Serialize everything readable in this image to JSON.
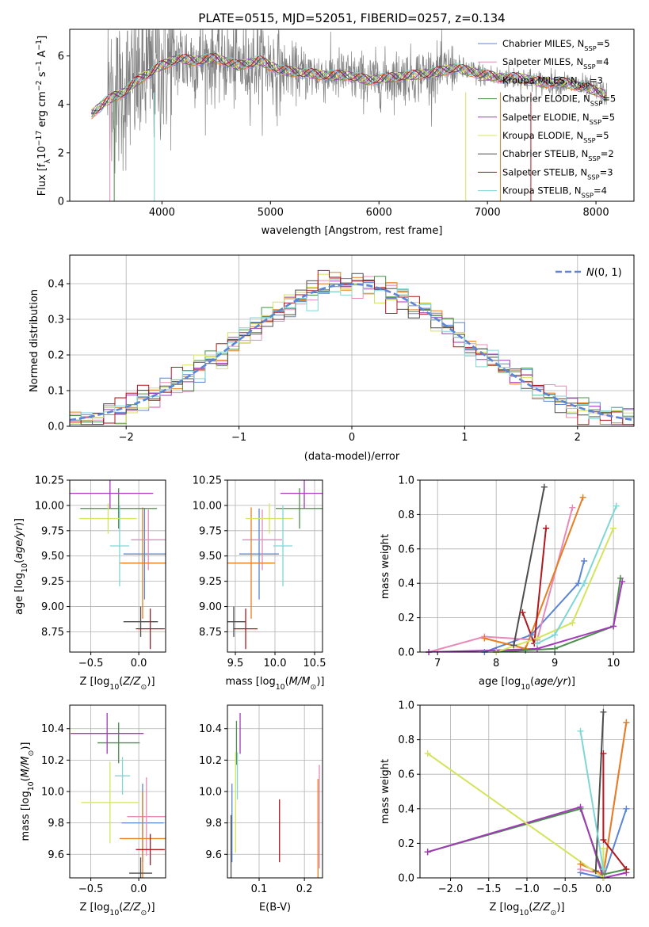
{
  "colors": {
    "chabrier_miles": "#5b84d6",
    "salpeter_miles": "#e889b8",
    "kroupa_miles": "#e67e22",
    "chabrier_elodie": "#4a8f4a",
    "salpeter_elodie": "#a23ab8",
    "kroupa_elodie": "#d4e45c",
    "chabrier_stelib": "#4d4d4d",
    "salpeter_stelib": "#b0171f",
    "kroupa_stelib": "#7fd6d6",
    "spectrum_data": "#808080"
  },
  "chart_data": [
    {
      "id": "spectrum",
      "type": "line",
      "title": "PLATE=0515, MJD=52051, FIBERID=0257, z=0.134",
      "xlabel": "wavelength [Angstrom, rest frame]",
      "ylabel": "Flux [f_λ10^-17 erg cm^-2 s^-1 A^-1]",
      "xlim": [
        3150,
        8350
      ],
      "ylim": [
        0,
        7.1
      ],
      "xticks": [
        4000,
        5000,
        6000,
        7000,
        8000
      ],
      "yticks": [
        0,
        2,
        4,
        6
      ],
      "grid": false,
      "legend_position": "top-right",
      "legend": [
        {
          "label": "Chabrier MILES, N_SSP=5",
          "color_key": "chabrier_miles"
        },
        {
          "label": "Salpeter MILES, N_SSP=4",
          "color_key": "salpeter_miles"
        },
        {
          "label": "Kroupa MILES, N_SSP=3",
          "color_key": "kroupa_miles"
        },
        {
          "label": "Chabrier ELODIE, N_SSP=5",
          "color_key": "chabrier_elodie"
        },
        {
          "label": "Salpeter ELODIE, N_SSP=5",
          "color_key": "salpeter_elodie"
        },
        {
          "label": "Kroupa ELODIE, N_SSP=5",
          "color_key": "kroupa_elodie"
        },
        {
          "label": "Chabrier STELIB, N_SSP=2",
          "color_key": "chabrier_stelib"
        },
        {
          "label": "Salpeter STELIB, N_SSP=3",
          "color_key": "salpeter_stelib"
        },
        {
          "label": "Kroupa STELIB, N_SSP=4",
          "color_key": "kroupa_stelib"
        }
      ],
      "continuum": [
        [
          3350,
          3.6
        ],
        [
          3450,
          4.0
        ],
        [
          3550,
          4.3
        ],
        [
          3650,
          4.5
        ],
        [
          3750,
          4.9
        ],
        [
          3850,
          5.2
        ],
        [
          3950,
          5.5
        ],
        [
          4050,
          5.7
        ],
        [
          4150,
          5.9
        ],
        [
          4300,
          5.8
        ],
        [
          4500,
          5.9
        ],
        [
          4700,
          5.6
        ],
        [
          4900,
          5.8
        ],
        [
          5100,
          5.4
        ],
        [
          5300,
          5.3
        ],
        [
          5500,
          5.2
        ],
        [
          5700,
          5.2
        ],
        [
          5900,
          5.0
        ],
        [
          6100,
          5.1
        ],
        [
          6300,
          5.2
        ],
        [
          6500,
          5.3
        ],
        [
          6700,
          5.5
        ],
        [
          6900,
          5.3
        ],
        [
          7100,
          5.1
        ],
        [
          7300,
          5.1
        ],
        [
          7500,
          4.9
        ],
        [
          7700,
          4.9
        ],
        [
          7900,
          4.7
        ],
        [
          8100,
          4.4
        ]
      ]
    },
    {
      "id": "residuals",
      "type": "histogram",
      "xlabel": "(data-model)/error",
      "ylabel": "Normed distribution",
      "xlim": [
        -2.5,
        2.5
      ],
      "ylim": [
        0,
        0.48
      ],
      "xticks": [
        -2,
        -1,
        0,
        1,
        2
      ],
      "yticks": [
        0.0,
        0.1,
        0.2,
        0.3,
        0.4
      ],
      "grid": true,
      "legend": [
        {
          "label": "N(0, 1)",
          "style": "dashed"
        }
      ],
      "bin_width": 0.1
    },
    {
      "id": "age_vs_Z",
      "type": "errorbar",
      "xlabel": "Z [log10(Z/Z⊙)]",
      "ylabel": "age [log10(age/yr)]",
      "xlim": [
        -0.72,
        0.28
      ],
      "ylim": [
        8.55,
        10.25
      ],
      "xticks": [
        -0.5,
        0.0
      ],
      "yticks": [
        8.75,
        9.0,
        9.25,
        9.5,
        9.75,
        10.0,
        10.25
      ],
      "grid": true,
      "points": [
        {
          "model": "chabrier_miles",
          "x": 0.06,
          "y": 9.52,
          "xerr": 0.22,
          "yerr": 0.45
        },
        {
          "model": "salpeter_miles",
          "x": 0.1,
          "y": 9.66,
          "xerr": 0.18,
          "yerr": 0.3
        },
        {
          "model": "kroupa_miles",
          "x": 0.04,
          "y": 9.43,
          "xerr": 0.24,
          "yerr": 0.55
        },
        {
          "model": "chabrier_elodie",
          "x": -0.21,
          "y": 9.97,
          "xerr": 0.4,
          "yerr": 0.2
        },
        {
          "model": "salpeter_elodie",
          "x": -0.3,
          "y": 10.12,
          "xerr": 0.45,
          "yerr": 0.15
        },
        {
          "model": "kroupa_elodie",
          "x": -0.32,
          "y": 9.87,
          "xerr": 0.3,
          "yerr": 0.15
        },
        {
          "model": "chabrier_stelib",
          "x": 0.02,
          "y": 8.85,
          "xerr": 0.18,
          "yerr": 0.15
        },
        {
          "model": "salpeter_stelib",
          "x": 0.12,
          "y": 8.78,
          "xerr": 0.15,
          "yerr": 0.2
        },
        {
          "model": "kroupa_stelib",
          "x": -0.2,
          "y": 9.6,
          "xerr": 0.1,
          "yerr": 0.4
        }
      ]
    },
    {
      "id": "age_vs_mass",
      "type": "errorbar",
      "xlabel": "mass [log10(M/M⊙)]",
      "ylabel": "",
      "xlim": [
        9.4,
        10.6
      ],
      "ylim": [
        8.55,
        10.25
      ],
      "xticks": [
        9.5,
        10.0,
        10.5
      ],
      "yticks": [
        8.75,
        9.0,
        9.25,
        9.5,
        9.75,
        10.0,
        10.25
      ],
      "grid": true,
      "points": [
        {
          "model": "chabrier_miles",
          "x": 9.8,
          "y": 9.52,
          "xerr": 0.25,
          "yerr": 0.45
        },
        {
          "model": "salpeter_miles",
          "x": 9.84,
          "y": 9.66,
          "xerr": 0.25,
          "yerr": 0.3
        },
        {
          "model": "kroupa_miles",
          "x": 9.7,
          "y": 9.43,
          "xerr": 0.3,
          "yerr": 0.55
        },
        {
          "model": "chabrier_elodie",
          "x": 10.31,
          "y": 9.97,
          "xerr": 0.3,
          "yerr": 0.2
        },
        {
          "model": "salpeter_elodie",
          "x": 10.37,
          "y": 10.12,
          "xerr": 0.3,
          "yerr": 0.15
        },
        {
          "model": "kroupa_elodie",
          "x": 9.93,
          "y": 9.87,
          "xerr": 0.3,
          "yerr": 0.15
        },
        {
          "model": "chabrier_stelib",
          "x": 9.48,
          "y": 8.85,
          "xerr": 0.15,
          "yerr": 0.15
        },
        {
          "model": "salpeter_stelib",
          "x": 9.63,
          "y": 8.78,
          "xerr": 0.15,
          "yerr": 0.2
        },
        {
          "model": "kroupa_stelib",
          "x": 10.1,
          "y": 9.6,
          "xerr": 0.12,
          "yerr": 0.4
        }
      ]
    },
    {
      "id": "mass_weight_vs_age",
      "type": "line",
      "xlabel": "age [log10(age/yr)]",
      "ylabel": "mass weight",
      "xlim": [
        6.7,
        10.35
      ],
      "ylim": [
        0,
        1.0
      ],
      "xticks": [
        7,
        8,
        9,
        10
      ],
      "yticks": [
        0.0,
        0.2,
        0.4,
        0.6,
        0.8,
        1.0
      ],
      "grid": true,
      "series": [
        {
          "model": "chabrier_miles",
          "x": [
            7.8,
            8.6,
            9.4,
            9.5
          ],
          "y": [
            0.0,
            0.1,
            0.4,
            0.53
          ]
        },
        {
          "model": "salpeter_miles",
          "x": [
            6.85,
            7.8,
            8.7,
            9.3
          ],
          "y": [
            0.0,
            0.09,
            0.07,
            0.84
          ]
        },
        {
          "model": "kroupa_miles",
          "x": [
            7.8,
            8.5,
            9.48
          ],
          "y": [
            0.08,
            0.02,
            0.9
          ]
        },
        {
          "model": "chabrier_elodie",
          "x": [
            8.0,
            8.5,
            9.0,
            10.0,
            10.12
          ],
          "y": [
            0.0,
            0.01,
            0.02,
            0.15,
            0.43
          ]
        },
        {
          "model": "salpeter_elodie",
          "x": [
            6.85,
            8.0,
            8.7,
            10.0,
            10.15
          ],
          "y": [
            0.0,
            0.01,
            0.02,
            0.15,
            0.41
          ]
        },
        {
          "model": "kroupa_elodie",
          "x": [
            8.0,
            8.7,
            9.3,
            10.0
          ],
          "y": [
            0.0,
            0.08,
            0.17,
            0.72
          ]
        },
        {
          "model": "chabrier_stelib",
          "x": [
            8.3,
            8.82
          ],
          "y": [
            0.04,
            0.96
          ]
        },
        {
          "model": "salpeter_stelib",
          "x": [
            8.45,
            8.65,
            8.85
          ],
          "y": [
            0.23,
            0.05,
            0.72
          ]
        },
        {
          "model": "kroupa_stelib",
          "x": [
            8.7,
            9.0,
            9.5,
            10.05
          ],
          "y": [
            0.05,
            0.1,
            0.4,
            0.85
          ]
        }
      ]
    },
    {
      "id": "mass_vs_Z",
      "type": "errorbar",
      "xlabel": "Z [log10(Z/Z⊙)]",
      "ylabel": "mass [log10(M/M⊙)]",
      "xlim": [
        -0.72,
        0.28
      ],
      "ylim": [
        9.45,
        10.55
      ],
      "xticks": [
        -0.5,
        0.0
      ],
      "yticks": [
        9.6,
        9.8,
        10.0,
        10.2,
        10.4
      ],
      "grid": true,
      "points": [
        {
          "model": "chabrier_miles",
          "x": 0.04,
          "y": 9.8,
          "xerr": 0.22,
          "yerr": 0.25
        },
        {
          "model": "salpeter_miles",
          "x": 0.08,
          "y": 9.84,
          "xerr": 0.2,
          "yerr": 0.25
        },
        {
          "model": "kroupa_miles",
          "x": 0.04,
          "y": 9.7,
          "xerr": 0.24,
          "yerr": 0.3
        },
        {
          "model": "chabrier_elodie",
          "x": -0.21,
          "y": 10.31,
          "xerr": 0.22,
          "yerr": 0.13
        },
        {
          "model": "salpeter_elodie",
          "x": -0.33,
          "y": 10.37,
          "xerr": 0.38,
          "yerr": 0.13
        },
        {
          "model": "kroupa_elodie",
          "x": -0.3,
          "y": 9.93,
          "xerr": 0.3,
          "yerr": 0.26
        },
        {
          "model": "chabrier_stelib",
          "x": 0.02,
          "y": 9.48,
          "xerr": 0.12,
          "yerr": 0.1
        },
        {
          "model": "salpeter_stelib",
          "x": 0.12,
          "y": 9.63,
          "xerr": 0.15,
          "yerr": 0.1
        },
        {
          "model": "kroupa_stelib",
          "x": -0.17,
          "y": 10.1,
          "xerr": 0.08,
          "yerr": 0.12
        }
      ]
    },
    {
      "id": "mass_vs_ebv",
      "type": "errorbar",
      "xlabel": "E(B-V)",
      "ylabel": "",
      "xlim": [
        0.03,
        0.24
      ],
      "ylim": [
        9.45,
        10.55
      ],
      "xticks": [
        0.1,
        0.2
      ],
      "yticks": [
        9.6,
        9.8,
        10.0,
        10.2,
        10.4
      ],
      "grid": true,
      "points": [
        {
          "model": "chabrier_miles",
          "x": 0.04,
          "y": 9.8,
          "xerr": 0,
          "yerr": 0.25
        },
        {
          "model": "salpeter_miles",
          "x": 0.233,
          "y": 9.84,
          "xerr": 0,
          "yerr": 0.33
        },
        {
          "model": "kroupa_miles",
          "x": 0.23,
          "y": 9.75,
          "xerr": 0,
          "yerr": 0.33
        },
        {
          "model": "chabrier_elodie",
          "x": 0.05,
          "y": 10.31,
          "xerr": 0,
          "yerr": 0.14
        },
        {
          "model": "salpeter_elodie",
          "x": 0.058,
          "y": 10.37,
          "xerr": 0,
          "yerr": 0.13
        },
        {
          "model": "kroupa_elodie",
          "x": 0.048,
          "y": 9.93,
          "xerr": 0,
          "yerr": 0.32
        },
        {
          "model": "chabrier_stelib",
          "x": 0.038,
          "y": 9.65,
          "xerr": 0,
          "yerr": 0.2
        },
        {
          "model": "salpeter_stelib",
          "x": 0.145,
          "y": 9.75,
          "xerr": 0,
          "yerr": 0.2
        },
        {
          "model": "kroupa_stelib",
          "x": 0.052,
          "y": 10.1,
          "xerr": 0,
          "yerr": 0.15
        }
      ]
    },
    {
      "id": "mass_weight_vs_Z",
      "type": "line",
      "xlabel": "Z [log10(Z/Z⊙)]",
      "ylabel": "mass weight",
      "xlim": [
        -2.4,
        0.4
      ],
      "ylim": [
        0,
        1.0
      ],
      "xticks": [
        -2.0,
        -1.5,
        -1.0,
        -0.5,
        0.0
      ],
      "yticks": [
        0.0,
        0.2,
        0.4,
        0.6,
        0.8,
        1.0
      ],
      "grid": true,
      "series": [
        {
          "model": "chabrier_miles",
          "x": [
            -0.3,
            0.0,
            0.3
          ],
          "y": [
            0.03,
            0.0,
            0.4
          ]
        },
        {
          "model": "salpeter_miles",
          "x": [
            -0.3,
            0.0,
            0.3
          ],
          "y": [
            0.05,
            0.02,
            0.9
          ]
        },
        {
          "model": "kroupa_miles",
          "x": [
            -0.3,
            0.0,
            0.3
          ],
          "y": [
            0.08,
            0.02,
            0.9
          ]
        },
        {
          "model": "chabrier_elodie",
          "x": [
            -2.3,
            -0.3,
            0.0,
            0.3
          ],
          "y": [
            0.15,
            0.4,
            0.02,
            0.05
          ]
        },
        {
          "model": "salpeter_elodie",
          "x": [
            -2.3,
            -0.3,
            0.0,
            0.3
          ],
          "y": [
            0.15,
            0.41,
            0.0,
            0.03
          ]
        },
        {
          "model": "kroupa_elodie",
          "x": [
            -2.3,
            0.0,
            0.0
          ],
          "y": [
            0.72,
            0.0,
            0.17
          ]
        },
        {
          "model": "chabrier_stelib",
          "x": [
            -0.1,
            0.0
          ],
          "y": [
            0.04,
            0.96
          ]
        },
        {
          "model": "salpeter_stelib",
          "x": [
            0.0,
            0.0,
            0.3
          ],
          "y": [
            0.72,
            0.22,
            0.05
          ]
        },
        {
          "model": "kroupa_stelib",
          "x": [
            -0.3,
            0.0
          ],
          "y": [
            0.85,
            0.05
          ]
        }
      ]
    }
  ]
}
